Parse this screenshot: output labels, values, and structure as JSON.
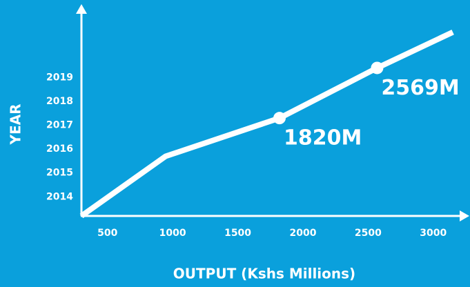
{
  "chart_data": {
    "type": "line",
    "x_label": "OUTPUT (Kshs Millions)",
    "y_label": "YEAR",
    "x": [
      300,
      946,
      1820,
      2569,
      3150
    ],
    "series": [
      {
        "color": "#ffffff",
        "values": [
          2013.2,
          2015.7,
          2017.3,
          2019.4,
          2020.9
        ]
      }
    ],
    "annotations": [
      {
        "text": "1820M",
        "point": 2
      },
      {
        "text": "2569M",
        "point": 3
      }
    ],
    "xlim": [
      300,
      3250
    ],
    "ylim": [
      2013.2,
      2021.9
    ],
    "xticks": [
      500,
      1000,
      1500,
      2000,
      2500,
      3000
    ],
    "yticks": [
      2014,
      2015,
      2016,
      2017,
      2018,
      2019
    ],
    "grid": false
  }
}
